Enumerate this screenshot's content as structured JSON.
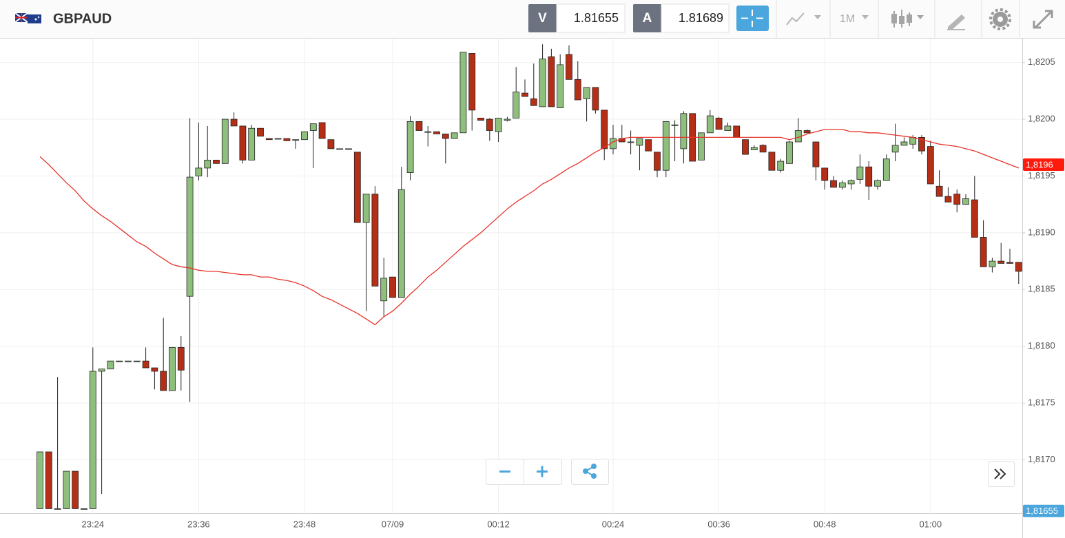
{
  "header": {
    "symbol": "GBPAUD",
    "bid_label": "V",
    "bid": "1.81655",
    "ask_label": "A",
    "ask": "1.81689",
    "timeframe": "1M"
  },
  "chart_data": {
    "type": "candlestick",
    "categories": [
      null,
      null,
      null,
      null,
      null,
      null,
      "23:24",
      null,
      null,
      null,
      null,
      null,
      null,
      null,
      null,
      null,
      null,
      null,
      "23:36",
      null,
      null,
      null,
      null,
      null,
      null,
      null,
      null,
      null,
      null,
      null,
      "23:48",
      null,
      null,
      null,
      null,
      null,
      null,
      null,
      null,
      null,
      "07/09",
      null,
      null,
      null,
      null,
      null,
      null,
      null,
      null,
      null,
      null,
      null,
      "00:12",
      null,
      null,
      null,
      null,
      null,
      null,
      null,
      null,
      null,
      null,
      null,
      null,
      "00:24",
      null,
      null,
      null,
      null,
      null,
      null,
      null,
      null,
      null,
      null,
      null,
      "00:36",
      null,
      null,
      null,
      null,
      null,
      null,
      null,
      null,
      null,
      null,
      null,
      "00:48",
      null,
      null,
      null,
      null,
      null,
      null,
      null,
      null,
      null,
      null,
      null,
      "01:00",
      null,
      null,
      null,
      null,
      null,
      null,
      null,
      null,
      null,
      null
    ],
    "open": [
      1.81657,
      1.81707,
      1.81657,
      1.81657,
      1.8169,
      1.81657,
      1.81657,
      1.81778,
      1.8178,
      1.81787,
      1.81787,
      1.81787,
      1.81787,
      1.81781,
      1.81778,
      1.81761,
      1.81799,
      1.81844,
      1.8195,
      1.81957,
      1.81964,
      1.81961,
      1.82,
      1.81994,
      1.81964,
      1.81992,
      1.81983,
      1.81983,
      1.81983,
      1.81982,
      1.81982,
      1.8199,
      1.81997,
      1.81982,
      1.81974,
      1.81974,
      1.81971,
      1.81909,
      1.81934,
      1.8184,
      1.81861,
      1.81843,
      1.81953,
      1.81998,
      1.81989,
      1.81989,
      1.81987,
      1.81983,
      1.81988,
      1.82058,
      1.82001,
      1.82,
      1.81989,
      1.81999,
      1.82001,
      1.82023,
      1.82018,
      1.82011,
      1.82055,
      1.8201,
      1.82057,
      1.82035,
      1.82018,
      1.82028,
      1.82008,
      1.81974,
      1.81983,
      1.8198,
      1.81977,
      1.81982,
      1.81971,
      1.81955,
      1.81995,
      1.81974,
      1.82005,
      1.81964,
      1.81988,
      1.82001,
      1.8199,
      1.81994,
      1.81982,
      1.81973,
      1.81977,
      1.81971,
      1.81955,
      1.81961,
      1.8198,
      1.8199,
      1.8198,
      1.81957,
      1.81946,
      1.8194,
      1.81943,
      1.81947,
      1.81958,
      1.81941,
      1.81946,
      1.81971,
      1.81977,
      1.81978,
      1.81984,
      1.81976,
      1.81941,
      1.81932,
      1.81934,
      1.81925,
      1.81929,
      1.81896,
      1.8187,
      1.81875,
      1.81874,
      1.81874
    ],
    "high": [
      1.81707,
      1.81707,
      1.81773,
      1.8169,
      1.8169,
      1.81657,
      1.81799,
      1.8178,
      1.81787,
      1.81787,
      1.81787,
      1.81787,
      1.81799,
      1.81781,
      1.81825,
      1.81799,
      1.81809,
      1.82001,
      1.81997,
      1.81994,
      1.81964,
      1.82,
      1.82006,
      1.81994,
      1.81995,
      1.81992,
      1.81983,
      1.81983,
      1.81983,
      1.81982,
      1.81989,
      1.81996,
      1.81997,
      1.81982,
      1.81974,
      1.81974,
      1.81971,
      1.81934,
      1.81941,
      1.81878,
      1.81861,
      1.81958,
      1.82003,
      1.81998,
      1.81994,
      1.81989,
      1.81987,
      1.81988,
      1.82059,
      1.82058,
      1.82001,
      1.82001,
      1.82001,
      1.82002,
      1.82046,
      1.82035,
      1.82049,
      1.82066,
      1.82062,
      1.82057,
      1.82065,
      1.82051,
      1.82028,
      1.82028,
      1.82008,
      1.81995,
      1.81995,
      1.8199,
      1.81983,
      1.81982,
      1.81971,
      1.81998,
      1.81999,
      1.82007,
      1.82005,
      1.81988,
      1.82008,
      1.82002,
      1.81997,
      1.81994,
      1.81982,
      1.81977,
      1.81978,
      1.81971,
      1.81965,
      1.81981,
      1.82001,
      1.81991,
      1.8198,
      1.81957,
      1.8195,
      1.81946,
      1.81947,
      1.81969,
      1.81963,
      1.81947,
      1.81969,
      1.81996,
      1.81984,
      1.81986,
      1.81986,
      1.81981,
      1.81955,
      1.8194,
      1.81938,
      1.81934,
      1.8195,
      1.81911,
      1.81878,
      1.81891,
      1.81886,
      1.81874
    ],
    "low": [
      1.81657,
      1.81657,
      1.81657,
      1.81657,
      1.81657,
      1.81657,
      1.81657,
      1.8167,
      1.8178,
      1.81787,
      1.81787,
      1.81787,
      1.81781,
      1.81762,
      1.81761,
      1.81761,
      1.81761,
      1.81751,
      1.81946,
      1.81949,
      1.81961,
      1.81961,
      1.81994,
      1.81961,
      1.81964,
      1.81985,
      1.81982,
      1.81983,
      1.81981,
      1.81974,
      1.81982,
      1.81957,
      1.81983,
      1.81974,
      1.81974,
      1.81974,
      1.81909,
      1.81831,
      1.81853,
      1.81826,
      1.81843,
      1.81843,
      1.81946,
      1.8199,
      1.81976,
      1.81987,
      1.81961,
      1.81983,
      1.81988,
      1.8199,
      1.81999,
      1.81981,
      1.8198,
      1.81998,
      1.82001,
      1.8202,
      1.82012,
      1.82011,
      1.82011,
      1.8201,
      1.82035,
      1.82017,
      1.81998,
      1.82005,
      1.81964,
      1.81969,
      1.8198,
      1.81969,
      1.81955,
      1.81972,
      1.81949,
      1.81949,
      1.81963,
      1.81961,
      1.81963,
      1.81964,
      1.81988,
      1.81991,
      1.8199,
      1.81984,
      1.81969,
      1.81973,
      1.81971,
      1.81955,
      1.81953,
      1.81961,
      1.8198,
      1.81988,
      1.81946,
      1.81938,
      1.8194,
      1.81938,
      1.81938,
      1.81943,
      1.81929,
      1.81938,
      1.81946,
      1.81963,
      1.81977,
      1.81974,
      1.81969,
      1.81943,
      1.81932,
      1.81927,
      1.81918,
      1.81925,
      1.81896,
      1.8187,
      1.81865,
      1.81873,
      1.81873,
      1.81855
    ],
    "close": [
      1.81707,
      1.81657,
      1.81657,
      1.8169,
      1.81657,
      1.81657,
      1.81778,
      1.8178,
      1.81787,
      1.81787,
      1.81787,
      1.81787,
      1.81781,
      1.81778,
      1.81761,
      1.81799,
      1.81779,
      1.81949,
      1.81957,
      1.81964,
      1.81961,
      1.82,
      1.81994,
      1.81964,
      1.81992,
      1.81985,
      1.81982,
      1.81983,
      1.81981,
      1.81982,
      1.81989,
      1.81996,
      1.81983,
      1.81974,
      1.81974,
      1.81974,
      1.81909,
      1.81934,
      1.81853,
      1.8186,
      1.81843,
      1.81938,
      1.81998,
      1.8199,
      1.81989,
      1.81987,
      1.81983,
      1.81988,
      1.82059,
      1.82008,
      1.81999,
      1.8199,
      1.82001,
      1.82,
      1.82024,
      1.8202,
      1.82012,
      1.82053,
      1.82011,
      1.82048,
      1.82035,
      1.82017,
      1.82028,
      1.82008,
      1.81974,
      1.81983,
      1.8198,
      1.8198,
      1.81983,
      1.81972,
      1.81955,
      1.81998,
      1.81995,
      1.82005,
      1.81963,
      1.81988,
      1.82003,
      1.81991,
      1.81994,
      1.81984,
      1.81969,
      1.81975,
      1.81971,
      1.81955,
      1.81963,
      1.8198,
      1.8199,
      1.81988,
      1.81958,
      1.81946,
      1.8194,
      1.81944,
      1.81946,
      1.81958,
      1.81941,
      1.81946,
      1.81965,
      1.81977,
      1.8198,
      1.81984,
      1.81972,
      1.81943,
      1.81932,
      1.81927,
      1.81925,
      1.8193,
      1.81896,
      1.8187,
      1.81875,
      1.81873,
      1.81873,
      1.81866
    ],
    "up_color": "#8fbf7c",
    "down_color": "#b52f16",
    "moving_average": {
      "color": "#e8322a",
      "values": [
        1.81967,
        1.8196,
        1.81952,
        1.81944,
        1.81937,
        1.81928,
        1.81921,
        1.81915,
        1.8191,
        1.81904,
        1.81898,
        1.81892,
        1.81888,
        1.81882,
        1.81877,
        1.81872,
        1.8187,
        1.81869,
        1.81867,
        1.81866,
        1.81866,
        1.81865,
        1.81864,
        1.81863,
        1.81863,
        1.81861,
        1.81861,
        1.81859,
        1.81858,
        1.81856,
        1.81853,
        1.81849,
        1.81844,
        1.81841,
        1.81837,
        1.81833,
        1.81829,
        1.81824,
        1.81819,
        1.81826,
        1.81831,
        1.81838,
        1.81846,
        1.81853,
        1.81861,
        1.81867,
        1.81874,
        1.81881,
        1.81888,
        1.81894,
        1.819,
        1.81907,
        1.81914,
        1.81921,
        1.81927,
        1.81932,
        1.81937,
        1.81943,
        1.81947,
        1.81952,
        1.81957,
        1.81961,
        1.81966,
        1.81971,
        1.81975,
        1.8198,
        1.81983,
        1.81984,
        1.81984,
        1.81984,
        1.81984,
        1.81984,
        1.81984,
        1.81984,
        1.81984,
        1.81984,
        1.81984,
        1.81984,
        1.81984,
        1.81984,
        1.81984,
        1.81984,
        1.81984,
        1.81984,
        1.81984,
        1.81982,
        1.81984,
        1.81987,
        1.81989,
        1.81991,
        1.81991,
        1.81991,
        1.81989,
        1.81989,
        1.81988,
        1.81988,
        1.81987,
        1.81986,
        1.81985,
        1.81984,
        1.81982,
        1.8198,
        1.81978,
        1.81977,
        1.81976,
        1.81974,
        1.81972,
        1.81969,
        1.81966,
        1.81963,
        1.8196,
        1.81957
      ]
    },
    "ylim": [
      1.81653,
      1.82071
    ],
    "yticks": [
      {
        "value": 1.817,
        "label": "1,8170"
      },
      {
        "value": 1.8175,
        "label": "1,8175"
      },
      {
        "value": 1.818,
        "label": "1,8180"
      },
      {
        "value": 1.8185,
        "label": "1,8185"
      },
      {
        "value": 1.819,
        "label": "1,8190"
      },
      {
        "value": 1.8195,
        "label": "1,8195"
      },
      {
        "value": 1.82,
        "label": "1,8200"
      },
      {
        "value": 1.8205,
        "label": "1,8205"
      }
    ],
    "grid": true,
    "annotations": [
      {
        "value": 1.8196,
        "label": "1,8196",
        "color": "#ff1a0e"
      },
      {
        "value": 1.81655,
        "label": "1,81655",
        "color": "#4aa6dc"
      }
    ]
  }
}
